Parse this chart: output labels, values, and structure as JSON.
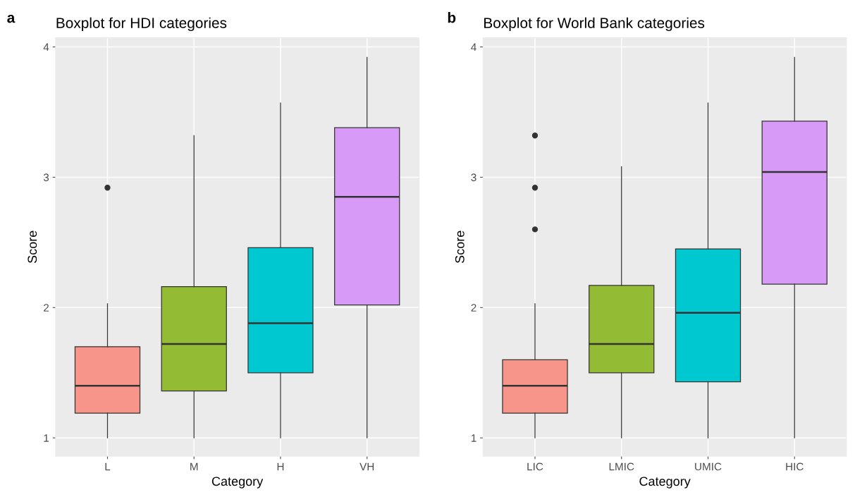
{
  "chart_data": [
    {
      "type": "box",
      "title": "Boxplot for HDI categories",
      "xlabel": "Category",
      "ylabel": "Score",
      "annotations": [
        "a"
      ],
      "categories": [
        "L",
        "M",
        "H",
        "VH"
      ],
      "colors": [
        "#f8958a",
        "#93bb33",
        "#00c8d0",
        "#d79af7"
      ],
      "boxes": [
        {
          "low": 1.0,
          "q1": 1.19,
          "median": 1.4,
          "q3": 1.7,
          "high": 2.03,
          "outliers": [
            2.92
          ]
        },
        {
          "low": 1.0,
          "q1": 1.36,
          "median": 1.72,
          "q3": 2.16,
          "high": 3.32
        },
        {
          "low": 1.0,
          "q1": 1.5,
          "median": 1.88,
          "q3": 2.46,
          "high": 3.57
        },
        {
          "low": 1.0,
          "q1": 2.02,
          "median": 2.85,
          "q3": 3.38,
          "high": 3.92
        }
      ],
      "ylim": [
        0.86,
        4.07
      ],
      "yticks": [
        1,
        2,
        3,
        4
      ],
      "grid": true
    },
    {
      "type": "box",
      "title": "Boxplot for World Bank categories",
      "xlabel": "Category",
      "ylabel": "Score",
      "annotations": [
        "b"
      ],
      "categories": [
        "LIC",
        "LMIC",
        "UMIC",
        "HIC"
      ],
      "colors": [
        "#f8958a",
        "#93bb33",
        "#00c8d0",
        "#d79af7"
      ],
      "boxes": [
        {
          "low": 1.0,
          "q1": 1.19,
          "median": 1.4,
          "q3": 1.6,
          "high": 2.03,
          "outliers": [
            3.32,
            2.92,
            2.6
          ]
        },
        {
          "low": 1.0,
          "q1": 1.5,
          "median": 1.72,
          "q3": 2.17,
          "high": 3.08
        },
        {
          "low": 1.0,
          "q1": 1.43,
          "median": 1.96,
          "q3": 2.45,
          "high": 3.57
        },
        {
          "low": 1.0,
          "q1": 2.18,
          "median": 3.04,
          "q3": 3.43,
          "high": 3.92
        }
      ],
      "ylim": [
        0.86,
        4.07
      ],
      "yticks": [
        1,
        2,
        3,
        4
      ],
      "grid": true
    }
  ]
}
